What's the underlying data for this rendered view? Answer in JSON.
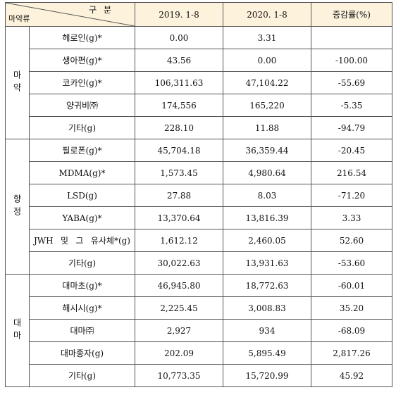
{
  "header": {
    "diag_top": "구 분",
    "diag_bottom": "마약류",
    "col_2019": "2019. 1-8",
    "col_2020": "2020. 1-8",
    "col_change": "증감률(%)"
  },
  "groups": [
    {
      "category": "마약",
      "rows": [
        {
          "drug": "헤로인(g)*",
          "v2019": "0.00",
          "v2020": "3.31",
          "change": ""
        },
        {
          "drug": "생아편(g)*",
          "v2019": "43.56",
          "v2020": "0.00",
          "change": "-100.00"
        },
        {
          "drug": "코카인(g)*",
          "v2019": "106,311.63",
          "v2020": "47,104.22",
          "change": "-55.69"
        },
        {
          "drug": "양귀비㈜",
          "v2019": "174,556",
          "v2020": "165,220",
          "change": "-5.35"
        },
        {
          "drug": "기타(g)",
          "v2019": "228.10",
          "v2020": "11.88",
          "change": "-94.79"
        }
      ]
    },
    {
      "category": "향정",
      "rows": [
        {
          "drug": "필로폰(g)*",
          "v2019": "45,704.18",
          "v2020": "36,359.44",
          "change": "-20.45"
        },
        {
          "drug": "MDMA(g)*",
          "v2019": "1,573.45",
          "v2020": "4,980.64",
          "change": "216.54"
        },
        {
          "drug": "LSD(g)",
          "v2019": "27.88",
          "v2020": "8.03",
          "change": "-71.20"
        },
        {
          "drug": "YABA(g)*",
          "v2019": "13,370.64",
          "v2020": "13,816.39",
          "change": "3.33"
        },
        {
          "drug": "JWH 및 그 유사체*(g)",
          "v2019": "1,612.12",
          "v2020": "2,460.05",
          "change": "52.60"
        },
        {
          "drug": "기타(g)",
          "v2019": "30,022.63",
          "v2020": "13,931.63",
          "change": "-53.60"
        }
      ]
    },
    {
      "category": "대마",
      "rows": [
        {
          "drug": "대마초(g)*",
          "v2019": "46,945.80",
          "v2020": "18,772.63",
          "change": "-60.01"
        },
        {
          "drug": "해시시(g)*",
          "v2019": "2,225.45",
          "v2020": "3,008.83",
          "change": "35.20"
        },
        {
          "drug": "대마㈜",
          "v2019": "2,927",
          "v2020": "934",
          "change": "-68.09"
        },
        {
          "drug": "대마종자(g)",
          "v2019": "202.09",
          "v2020": "5,895.49",
          "change": "2,817.26"
        },
        {
          "drug": "기타(g)",
          "v2019": "10,773.35",
          "v2020": "15,720.99",
          "change": "45.92"
        }
      ]
    }
  ]
}
